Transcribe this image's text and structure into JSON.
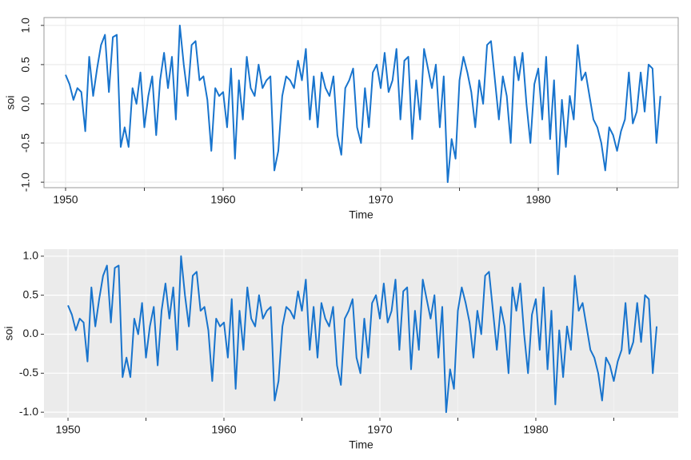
{
  "chart_data": [
    {
      "type": "line",
      "theme": "bw",
      "color": "#1874cd",
      "xlabel": "Time",
      "ylabel": "soi",
      "x": [
        1950,
        1950.25,
        1950.5,
        1950.75,
        1951,
        1951.25,
        1951.5,
        1951.75,
        1952,
        1952.25,
        1952.5,
        1952.75,
        1953,
        1953.25,
        1953.5,
        1953.75,
        1954,
        1954.25,
        1954.5,
        1954.75,
        1955,
        1955.25,
        1955.5,
        1955.75,
        1956,
        1956.25,
        1956.5,
        1956.75,
        1957,
        1957.25,
        1957.5,
        1957.75,
        1958,
        1958.25,
        1958.5,
        1958.75,
        1959,
        1959.25,
        1959.5,
        1959.75,
        1960,
        1960.25,
        1960.5,
        1960.75,
        1961,
        1961.25,
        1961.5,
        1961.75,
        1962,
        1962.25,
        1962.5,
        1962.75,
        1963,
        1963.25,
        1963.5,
        1963.75,
        1964,
        1964.25,
        1964.5,
        1964.75,
        1965,
        1965.25,
        1965.5,
        1965.75,
        1966,
        1966.25,
        1966.5,
        1966.75,
        1967,
        1967.25,
        1967.5,
        1967.75,
        1968,
        1968.25,
        1968.5,
        1968.75,
        1969,
        1969.25,
        1969.5,
        1969.75,
        1970,
        1970.25,
        1970.5,
        1970.75,
        1971,
        1971.25,
        1971.5,
        1971.75,
        1972,
        1972.25,
        1972.5,
        1972.75,
        1973,
        1973.25,
        1973.5,
        1973.75,
        1974,
        1974.25,
        1974.5,
        1974.75,
        1975,
        1975.25,
        1975.5,
        1975.75,
        1976,
        1976.25,
        1976.5,
        1976.75,
        1977,
        1977.25,
        1977.5,
        1977.75,
        1978,
        1978.25,
        1978.5,
        1978.75,
        1979,
        1979.25,
        1979.5,
        1979.75,
        1980,
        1980.25,
        1980.5,
        1980.75,
        1981,
        1981.25,
        1981.5,
        1981.75,
        1982,
        1982.25,
        1982.5,
        1982.75,
        1983,
        1983.25,
        1983.5,
        1983.75,
        1984,
        1984.25,
        1984.5,
        1984.75,
        1985,
        1985.25,
        1985.5,
        1985.75,
        1986,
        1986.25,
        1986.5,
        1986.75,
        1987,
        1987.25,
        1987.5,
        1987.75
      ],
      "values": [
        0.37,
        0.25,
        0.05,
        0.2,
        0.15,
        -0.35,
        0.6,
        0.1,
        0.45,
        0.75,
        0.88,
        0.15,
        0.85,
        0.88,
        -0.55,
        -0.3,
        -0.55,
        0.2,
        0.0,
        0.4,
        -0.3,
        0.1,
        0.35,
        -0.4,
        0.3,
        0.65,
        0.2,
        0.6,
        -0.2,
        1.0,
        0.5,
        0.1,
        0.75,
        0.8,
        0.3,
        0.35,
        0.05,
        -0.6,
        0.2,
        0.1,
        0.15,
        -0.3,
        0.45,
        -0.7,
        0.3,
        -0.2,
        0.6,
        0.2,
        0.1,
        0.5,
        0.2,
        0.3,
        0.35,
        -0.85,
        -0.6,
        0.1,
        0.35,
        0.3,
        0.2,
        0.55,
        0.3,
        0.7,
        -0.2,
        0.35,
        -0.3,
        0.4,
        0.2,
        0.1,
        0.35,
        -0.4,
        -0.65,
        0.2,
        0.3,
        0.45,
        -0.3,
        -0.5,
        0.2,
        -0.3,
        0.4,
        0.5,
        0.2,
        0.65,
        0.15,
        0.3,
        0.7,
        -0.2,
        0.55,
        0.6,
        -0.45,
        0.3,
        -0.2,
        0.7,
        0.45,
        0.2,
        0.5,
        -0.3,
        0.35,
        -1.0,
        -0.45,
        -0.7,
        0.3,
        0.6,
        0.4,
        0.15,
        -0.3,
        0.3,
        0.0,
        0.75,
        0.8,
        0.3,
        -0.2,
        0.35,
        0.1,
        -0.5,
        0.6,
        0.3,
        0.65,
        0.0,
        -0.5,
        0.25,
        0.45,
        -0.2,
        0.6,
        -0.45,
        0.3,
        -0.9,
        0.05,
        -0.55,
        0.1,
        -0.2,
        0.75,
        0.3,
        0.4,
        0.1,
        -0.2,
        -0.3,
        -0.5,
        -0.85,
        -0.3,
        -0.4,
        -0.6,
        -0.35,
        -0.2,
        0.4,
        -0.25,
        -0.1,
        0.4,
        -0.1,
        0.5,
        0.45,
        -0.5,
        0.1
      ],
      "xlim": [
        1948.63,
        1988.88
      ],
      "xticks": [
        1950,
        1960,
        1970,
        1980
      ],
      "x_minor_ticks": [
        1955,
        1965,
        1975,
        1985
      ],
      "ylim": [
        -1.07,
        1.1
      ],
      "yticks": [
        {
          "value": -1,
          "label": "-1.0"
        },
        -0.5,
        {
          "value": 0,
          "label": "0.0"
        },
        0.5,
        {
          "value": 1,
          "label": "1.0"
        }
      ],
      "ytick_rotation": -90,
      "grid": true
    },
    {
      "type": "line",
      "theme": "gray",
      "color": "#1874cd",
      "xlabel": "Time",
      "ylabel": "soi",
      "x": [
        1950,
        1950.25,
        1950.5,
        1950.75,
        1951,
        1951.25,
        1951.5,
        1951.75,
        1952,
        1952.25,
        1952.5,
        1952.75,
        1953,
        1953.25,
        1953.5,
        1953.75,
        1954,
        1954.25,
        1954.5,
        1954.75,
        1955,
        1955.25,
        1955.5,
        1955.75,
        1956,
        1956.25,
        1956.5,
        1956.75,
        1957,
        1957.25,
        1957.5,
        1957.75,
        1958,
        1958.25,
        1958.5,
        1958.75,
        1959,
        1959.25,
        1959.5,
        1959.75,
        1960,
        1960.25,
        1960.5,
        1960.75,
        1961,
        1961.25,
        1961.5,
        1961.75,
        1962,
        1962.25,
        1962.5,
        1962.75,
        1963,
        1963.25,
        1963.5,
        1963.75,
        1964,
        1964.25,
        1964.5,
        1964.75,
        1965,
        1965.25,
        1965.5,
        1965.75,
        1966,
        1966.25,
        1966.5,
        1966.75,
        1967,
        1967.25,
        1967.5,
        1967.75,
        1968,
        1968.25,
        1968.5,
        1968.75,
        1969,
        1969.25,
        1969.5,
        1969.75,
        1970,
        1970.25,
        1970.5,
        1970.75,
        1971,
        1971.25,
        1971.5,
        1971.75,
        1972,
        1972.25,
        1972.5,
        1972.75,
        1973,
        1973.25,
        1973.5,
        1973.75,
        1974,
        1974.25,
        1974.5,
        1974.75,
        1975,
        1975.25,
        1975.5,
        1975.75,
        1976,
        1976.25,
        1976.5,
        1976.75,
        1977,
        1977.25,
        1977.5,
        1977.75,
        1978,
        1978.25,
        1978.5,
        1978.75,
        1979,
        1979.25,
        1979.5,
        1979.75,
        1980,
        1980.25,
        1980.5,
        1980.75,
        1981,
        1981.25,
        1981.5,
        1981.75,
        1982,
        1982.25,
        1982.5,
        1982.75,
        1983,
        1983.25,
        1983.5,
        1983.75,
        1984,
        1984.25,
        1984.5,
        1984.75,
        1985,
        1985.25,
        1985.5,
        1985.75,
        1986,
        1986.25,
        1986.5,
        1986.75,
        1987,
        1987.25,
        1987.5,
        1987.75
      ],
      "values": [
        0.37,
        0.25,
        0.05,
        0.2,
        0.15,
        -0.35,
        0.6,
        0.1,
        0.45,
        0.75,
        0.88,
        0.15,
        0.85,
        0.88,
        -0.55,
        -0.3,
        -0.55,
        0.2,
        0.0,
        0.4,
        -0.3,
        0.1,
        0.35,
        -0.4,
        0.3,
        0.65,
        0.2,
        0.6,
        -0.2,
        1.0,
        0.5,
        0.1,
        0.75,
        0.8,
        0.3,
        0.35,
        0.05,
        -0.6,
        0.2,
        0.1,
        0.15,
        -0.3,
        0.45,
        -0.7,
        0.3,
        -0.2,
        0.6,
        0.2,
        0.1,
        0.5,
        0.2,
        0.3,
        0.35,
        -0.85,
        -0.6,
        0.1,
        0.35,
        0.3,
        0.2,
        0.55,
        0.3,
        0.7,
        -0.2,
        0.35,
        -0.3,
        0.4,
        0.2,
        0.1,
        0.35,
        -0.4,
        -0.65,
        0.2,
        0.3,
        0.45,
        -0.3,
        -0.5,
        0.2,
        -0.3,
        0.4,
        0.5,
        0.2,
        0.65,
        0.15,
        0.3,
        0.7,
        -0.2,
        0.55,
        0.6,
        -0.45,
        0.3,
        -0.2,
        0.7,
        0.45,
        0.2,
        0.5,
        -0.3,
        0.35,
        -1.0,
        -0.45,
        -0.7,
        0.3,
        0.6,
        0.4,
        0.15,
        -0.3,
        0.3,
        0.0,
        0.75,
        0.8,
        0.3,
        -0.2,
        0.35,
        0.1,
        -0.5,
        0.6,
        0.3,
        0.65,
        0.0,
        -0.5,
        0.25,
        0.45,
        -0.2,
        0.6,
        -0.45,
        0.3,
        -0.9,
        0.05,
        -0.55,
        0.1,
        -0.2,
        0.75,
        0.3,
        0.4,
        0.1,
        -0.2,
        -0.3,
        -0.5,
        -0.85,
        -0.3,
        -0.4,
        -0.6,
        -0.35,
        -0.2,
        0.4,
        -0.25,
        -0.1,
        0.4,
        -0.1,
        0.5,
        0.45,
        -0.5,
        0.1
      ],
      "xlim": [
        1948.46,
        1989.13
      ],
      "xticks": [
        1950,
        1960,
        1970,
        1980
      ],
      "x_minor_ticks": [
        1955,
        1965,
        1975,
        1985
      ],
      "ylim": [
        -1.07,
        1.09
      ],
      "yticks": [
        {
          "value": -1,
          "label": "-1.0"
        },
        -0.5,
        {
          "value": 0,
          "label": "0.0"
        },
        0.5,
        {
          "value": 1,
          "label": "1.0"
        }
      ],
      "ytick_rotation": 0,
      "grid": true
    }
  ]
}
